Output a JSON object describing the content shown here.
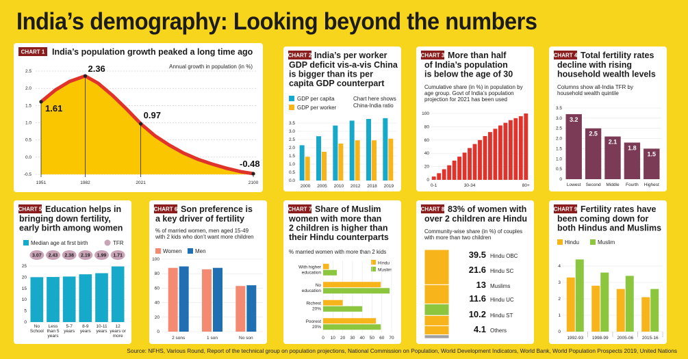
{
  "title": "India’s demography: Looking beyond the numbers",
  "source": "Source: NFHS, Various Round, Report of the technical group on population projections, National Commission on Population, World Development Indicators, World Bank, World Population Prospects 2019, United Nations",
  "colors": {
    "tag": "#8a1c1c",
    "red": "#e0332c",
    "yellow": "#f9c600",
    "cyan": "#16a9c9",
    "orange": "#f7b41b",
    "plum": "#7b3a55",
    "salmon": "#f48a72",
    "blue": "#1f6fb2",
    "green": "#8cc63e",
    "gray": "#a0a0a0",
    "bubble": "#c9a3b6"
  },
  "chart_data": [
    {
      "id": "chart1",
      "tag": "CHART 1",
      "type": "area",
      "title": "India’s population growth peaked a long time ago",
      "subtitle": "Annual growth in population (in %)",
      "x": [
        1951,
        1961,
        1971,
        1982,
        1991,
        2001,
        2011,
        2021,
        2031,
        2041,
        2051,
        2061,
        2071,
        2081,
        2091,
        2100
      ],
      "y": [
        1.61,
        1.95,
        2.2,
        2.36,
        2.15,
        1.8,
        1.4,
        0.97,
        0.62,
        0.35,
        0.12,
        -0.06,
        -0.2,
        -0.32,
        -0.42,
        -0.48
      ],
      "ylim": [
        -0.5,
        2.5
      ],
      "yticks": [
        "-0.5",
        "0.0",
        "0.5",
        "1.0",
        "1.5",
        "2.0",
        "2.5"
      ],
      "xticks": [
        "1951",
        "1982",
        "2021",
        "2100"
      ],
      "annotations": [
        {
          "x": 1951,
          "label": "1.61"
        },
        {
          "x": 1982,
          "label": "2.36"
        },
        {
          "x": 2021,
          "label": "0.97"
        },
        {
          "x": 2100,
          "label": "-0.48"
        }
      ]
    },
    {
      "id": "chart2",
      "tag": "CHART 2",
      "type": "bar",
      "title_lines": [
        "India’s per worker",
        "GDP deficit vis-a-vis China",
        "is bigger than its per",
        "capita GDP counterpart"
      ],
      "note_lines": [
        "Chart here shows",
        "China-India ratio"
      ],
      "categories": [
        "2000",
        "2005",
        "2010",
        "2012",
        "2018",
        "2019"
      ],
      "series": [
        {
          "name": "GDP per capita",
          "values": [
            2.15,
            2.7,
            3.35,
            3.65,
            3.75,
            3.8
          ]
        },
        {
          "name": "GDP per worker",
          "values": [
            1.45,
            1.75,
            2.25,
            2.45,
            2.45,
            2.55
          ]
        }
      ],
      "ylim": [
        0,
        4
      ],
      "yticks": [
        "0.0",
        "0.5",
        "1.0",
        "1.5",
        "2.0",
        "2.5",
        "3.0",
        "3.5"
      ]
    },
    {
      "id": "chart3",
      "tag": "CHART 3",
      "type": "bar",
      "title_lines": [
        "More than half",
        "of India’s population",
        "is below the age of 30"
      ],
      "subtitle_lines": [
        "Cumulative share (in %) in population by",
        "age group. Govt of India’s population",
        "projection for 2021 has been used"
      ],
      "values": [
        5,
        10,
        16,
        22,
        29,
        35,
        41,
        48,
        54,
        60,
        66,
        72,
        77,
        82,
        86,
        90,
        93,
        96,
        100
      ],
      "ylim": [
        0,
        100
      ],
      "yticks": [
        "0",
        "20",
        "40",
        "60",
        "80",
        "100"
      ],
      "xlabels": [
        "0-1",
        "30-34",
        "80+"
      ]
    },
    {
      "id": "chart4",
      "tag": "CHART 4",
      "type": "bar",
      "title_lines": [
        "Total fertility rates",
        "decline with rising",
        "household wealth levels"
      ],
      "subtitle_lines": [
        "Columns show all-India TFR by",
        "household wealth quintile"
      ],
      "categories": [
        "Lowest",
        "Second",
        "Middle",
        "Fourth",
        "Highest"
      ],
      "values": [
        3.2,
        2.5,
        2.1,
        1.8,
        1.5
      ],
      "labels": [
        "3.2",
        "2.5",
        "2.1",
        "1.8",
        "1.5"
      ],
      "ylim": [
        0,
        3.5
      ],
      "yticks": [
        "0",
        "0.5",
        "1.0",
        "1.5",
        "2.0",
        "2.5",
        "3.0",
        "3.5"
      ]
    },
    {
      "id": "chart5",
      "tag": "CHART 5",
      "type": "bar",
      "title_lines": [
        "Education helps in",
        "bringing down fertility,",
        "early birth among women"
      ],
      "legend": [
        "Median age at first birth",
        "TFR"
      ],
      "categories": [
        [
          "No",
          "School"
        ],
        [
          "Less",
          "than 5",
          "years"
        ],
        [
          "5-7",
          "years"
        ],
        [
          "8-9",
          "years"
        ],
        [
          "10-11",
          "years"
        ],
        [
          "12",
          "years or",
          "more"
        ]
      ],
      "values": [
        20,
        20.1,
        20.3,
        21.3,
        21.8,
        24.8
      ],
      "tfr": [
        "3.07",
        "2.43",
        "2.38",
        "2.19",
        "1.99",
        "1.71"
      ],
      "ylim": [
        0,
        25
      ],
      "yticks": [
        "0",
        "5",
        "10",
        "15",
        "20",
        "25"
      ]
    },
    {
      "id": "chart6",
      "tag": "CHART 6",
      "type": "bar",
      "title_lines": [
        "Son preference is",
        "a key driver of fertility"
      ],
      "subtitle_lines": [
        "% of married women, men aged 15-49",
        "with 2 kids who don’t want more children"
      ],
      "categories": [
        "2 sons",
        "1 son",
        "No son"
      ],
      "series": [
        {
          "name": "Women",
          "values": [
            88,
            86,
            63
          ]
        },
        {
          "name": "Men",
          "values": [
            90,
            88,
            64
          ]
        }
      ],
      "ylim": [
        0,
        100
      ],
      "yticks": [
        "0",
        "20",
        "40",
        "60",
        "80",
        "100"
      ]
    },
    {
      "id": "chart7",
      "tag": "CHART 7",
      "type": "bar",
      "title_lines": [
        "Share of Muslim",
        "women with more than",
        "2 children is higher than",
        "their Hindu counterparts"
      ],
      "subtitle": "% married women with more than 2 kids",
      "categories": [
        [
          "With higher",
          "education"
        ],
        [
          "No",
          "education"
        ],
        [
          "Richest",
          "20%"
        ],
        [
          "Poorest",
          "20%"
        ]
      ],
      "series": [
        {
          "name": "Hindu",
          "values": [
            6,
            59,
            20,
            54
          ]
        },
        {
          "name": "Muslim",
          "values": [
            14,
            68,
            40,
            59
          ]
        }
      ],
      "xlim": [
        0,
        70
      ],
      "xticks": [
        "0",
        "10",
        "20",
        "30",
        "40",
        "50",
        "60",
        "70"
      ]
    },
    {
      "id": "chart8",
      "tag": "CHART 8",
      "type": "bar",
      "title_lines": [
        "83% of women with",
        "over 2 children are Hindu"
      ],
      "subtitle_lines": [
        "Community-wise share (in %) of couples",
        "with more than two children"
      ],
      "segments": [
        {
          "value": "39.5",
          "name": "Hindu OBC"
        },
        {
          "value": "21.6",
          "name": "Hindu SC"
        },
        {
          "value": "13",
          "name": "Muslims"
        },
        {
          "value": "11.6",
          "name": "Hindu UC"
        },
        {
          "value": "10.2",
          "name": "Hindu ST"
        },
        {
          "value": "4.1",
          "name": "Others"
        }
      ]
    },
    {
      "id": "chart9",
      "tag": "CHART 9",
      "type": "bar",
      "title_lines": [
        "Fertility rates have",
        "been coming down for",
        "both Hindus and Muslims"
      ],
      "categories": [
        "1992-93",
        "1998-99",
        "2005-06",
        "2015-16"
      ],
      "series": [
        {
          "name": "Hindu",
          "values": [
            3.3,
            2.8,
            2.6,
            2.1
          ]
        },
        {
          "name": "Muslim",
          "values": [
            4.4,
            3.6,
            3.4,
            2.6
          ]
        }
      ],
      "ylim": [
        0,
        5
      ],
      "yticks": [
        "0",
        "1",
        "2",
        "3",
        "4"
      ]
    }
  ]
}
